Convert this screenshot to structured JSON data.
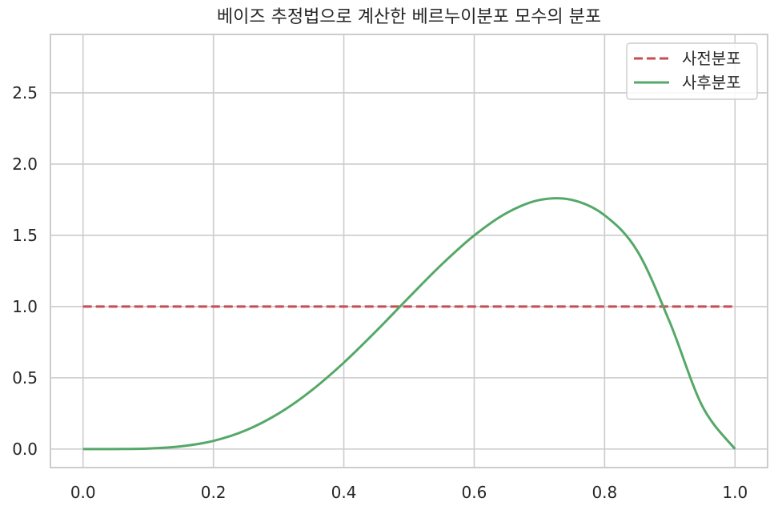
{
  "chart_data": {
    "type": "line",
    "title": "베이즈 추정법으로 계산한 베르누이분포 모수의 분포",
    "xlabel": "",
    "ylabel": "",
    "xlim": [
      -0.05,
      1.05
    ],
    "ylim": [
      -0.13,
      2.91
    ],
    "x_ticks": [
      "0.0",
      "0.2",
      "0.4",
      "0.6",
      "0.8",
      "1.0"
    ],
    "y_ticks": [
      "0.0",
      "0.5",
      "1.0",
      "1.5",
      "2.0",
      "2.5"
    ],
    "grid": true,
    "legend_position": "top-right",
    "x": [
      0.0,
      0.05,
      0.1,
      0.15,
      0.2,
      0.25,
      0.3,
      0.35,
      0.4,
      0.45,
      0.5,
      0.55,
      0.6,
      0.65,
      0.7,
      0.75,
      0.8,
      0.85,
      0.9,
      0.95,
      1.0
    ],
    "series": [
      {
        "name": "사전분포",
        "color": "#c44e52",
        "style": "dashed",
        "values": [
          1,
          1,
          1,
          1,
          1,
          1,
          1,
          1,
          1,
          1,
          1,
          1,
          1,
          1,
          1,
          1,
          1,
          1,
          1,
          1,
          1
        ]
      },
      {
        "name": "사후분포",
        "color": "#55a868",
        "style": "solid",
        "values": [
          0.0,
          0.0002,
          0.0036,
          0.0188,
          0.0573,
          0.1319,
          0.2496,
          0.4096,
          0.6065,
          0.8298,
          1.0651,
          1.2947,
          1.4991,
          1.6574,
          1.7478,
          1.7484,
          1.6408,
          1.3909,
          0.89,
          0.3,
          0.0
        ]
      }
    ]
  }
}
